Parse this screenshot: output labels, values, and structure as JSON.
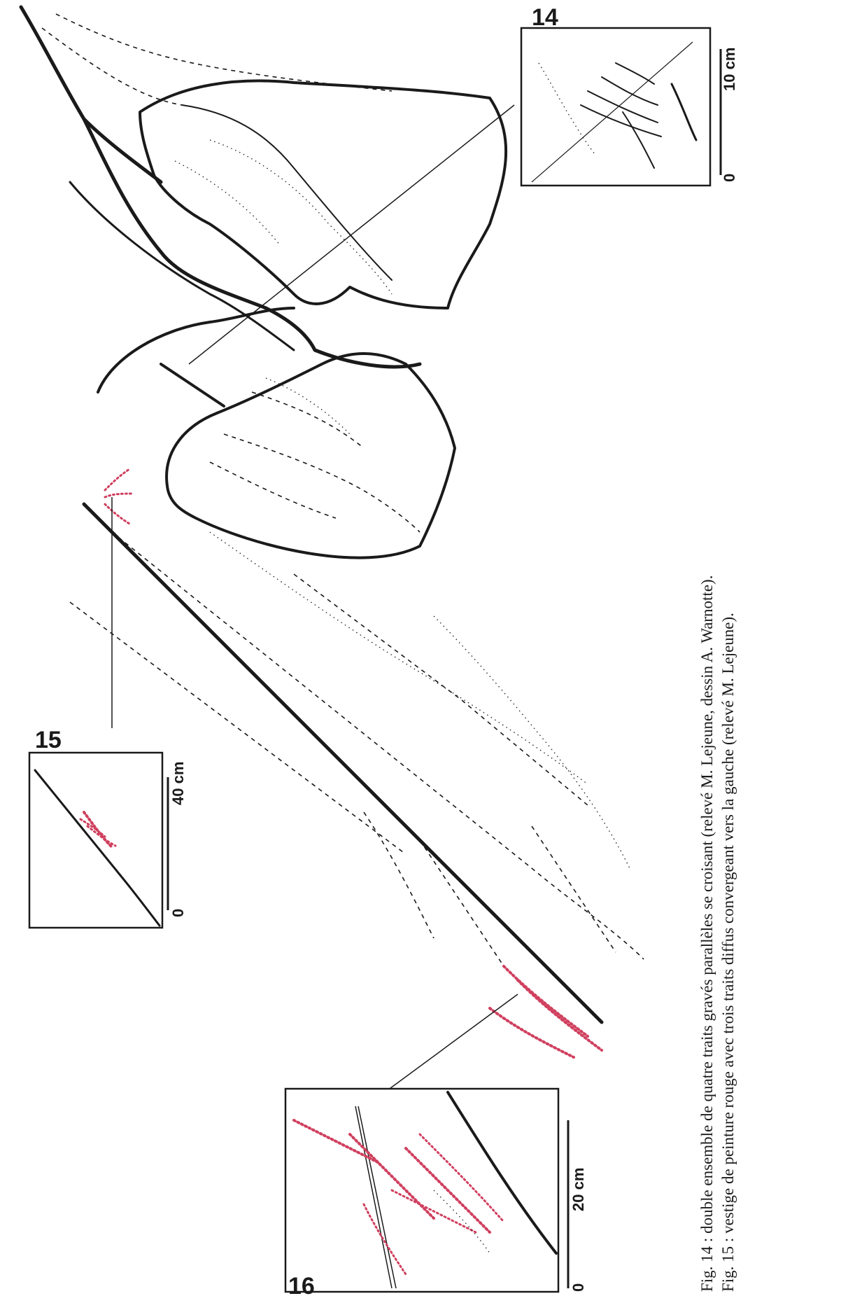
{
  "figures": {
    "fig14": {
      "number": "14",
      "scale_zero": "0",
      "scale_end": "10 cm"
    },
    "fig15": {
      "number": "15",
      "scale_zero": "0",
      "scale_end": "40 cm"
    },
    "fig16": {
      "number": "16",
      "scale_zero": "0",
      "scale_end": "20 cm"
    }
  },
  "caption": {
    "line1": "Fig. 14 : double ensemble de quatre traits gravés parallèles se croisant (relevé M. Lejeune, dessin A. Warnotte).",
    "line2": "Fig. 15 : vestige de peinture rouge avec trois traits diffus convergeant vers la gauche (relevé M. Lejeune)."
  },
  "colors": {
    "ink": "#1a1a1a",
    "paint_red": "#d0405f",
    "paper": "#ffffff"
  }
}
